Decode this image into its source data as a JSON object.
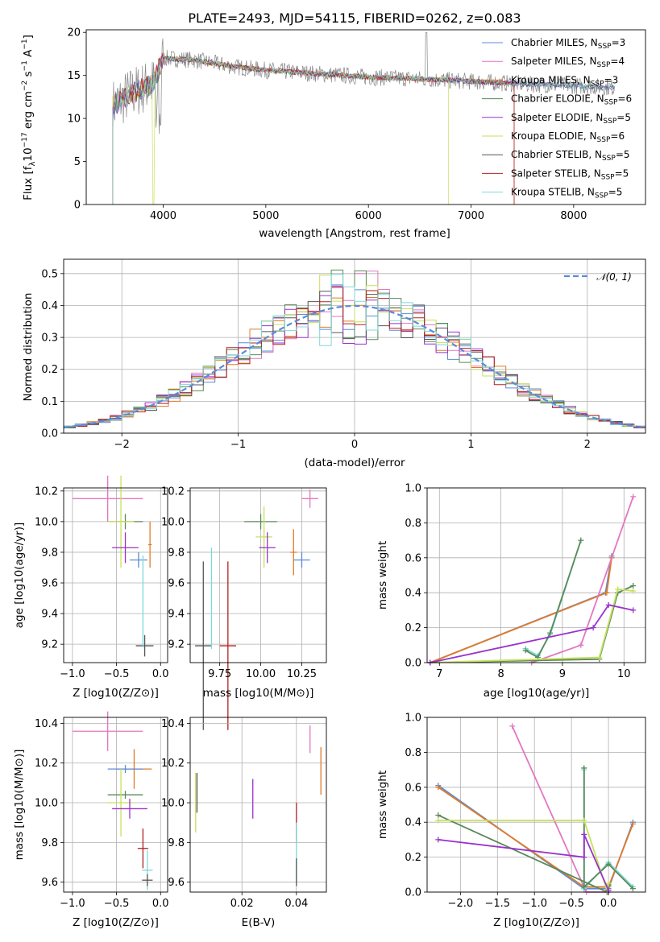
{
  "chart_data": [
    {
      "type": "line",
      "title": "PLATE=2493, MJD=54115, FIBERID=0262, z=0.083",
      "xlabel": "wavelength [Angstrom, rest frame]",
      "ylabel": "Flux [f_λ 10^-17 erg cm^-2 s^-1 A^-1]",
      "xlim": [
        3250,
        8700
      ],
      "ylim": [
        0,
        20.3
      ],
      "xticks": [
        4000,
        5000,
        6000,
        7000,
        8000
      ],
      "yticks": [
        0,
        5,
        10,
        15,
        20
      ],
      "xtick_labels": [
        "4000",
        "5000",
        "6000",
        "7000",
        "8000"
      ],
      "ytick_labels": [
        "0",
        "5",
        "10",
        "15",
        "20"
      ],
      "legend": [
        "Chabrier MILES, N_SSP=3",
        "Salpeter MILES, N_SSP=4",
        "Kroupa MILES, N_SSP=3",
        "Chabrier ELODIE, N_SSP=6",
        "Salpeter ELODIE, N_SSP=5",
        "Kroupa ELODIE, N_SSP=6",
        "Chabrier STELIB, N_SSP=5",
        "Salpeter STELIB, N_SSP=5",
        "Kroupa STELIB, N_SSP=5"
      ],
      "legend_placement": "upper right",
      "continuum_x": [
        3510,
        3700,
        3900,
        4000,
        4300,
        4700,
        5000,
        5500,
        6000,
        6500,
        7000,
        7500,
        8000,
        8400
      ],
      "continuum_y": [
        11.5,
        13.0,
        14.0,
        17.0,
        16.8,
        16.0,
        15.6,
        15.2,
        14.8,
        14.6,
        14.3,
        14.0,
        13.8,
        13.6
      ]
    },
    {
      "type": "step",
      "xlabel": "(data-model)/error",
      "ylabel": "Normed distribution",
      "xlim": [
        -2.5,
        2.5
      ],
      "ylim": [
        0,
        0.545
      ],
      "xticks": [
        -2,
        -1,
        0,
        1,
        2
      ],
      "yticks": [
        0.0,
        0.1,
        0.2,
        0.3,
        0.4,
        0.5
      ],
      "xtick_labels": [
        "−2",
        "−1",
        "0",
        "1",
        "2"
      ],
      "ytick_labels": [
        "0.0",
        "0.1",
        "0.2",
        "0.3",
        "0.4",
        "0.5"
      ],
      "bin_width": 0.1,
      "reference": {
        "name": "N(0,1)",
        "type": "gaussian",
        "color": "#5b8bd8"
      },
      "peak_bins": [
        0.52,
        0.5,
        0.41,
        0.28,
        0.28
      ]
    },
    {
      "type": "errorbar",
      "xlabel": "Z [log10(Z/Z⊙)]",
      "ylabel": "age  [log10(age/yr)]",
      "xlim": [
        -1.1,
        0.08
      ],
      "ylim": [
        9.08,
        10.22
      ],
      "xticks": [
        -1.0,
        -0.5,
        0.0
      ],
      "yticks": [
        9.2,
        9.4,
        9.6,
        9.8,
        10.0,
        10.2
      ],
      "xtick_labels": [
        "−1.0",
        "−0.5",
        "0.0"
      ],
      "ytick_labels": [
        "9.2",
        "9.4",
        "9.6",
        "9.8",
        "10.0",
        "10.2"
      ],
      "points": [
        {
          "x": -0.6,
          "y": 10.15,
          "xerr": 0.4,
          "yerr": 0.15,
          "color": "#e377c2"
        },
        {
          "x": -0.4,
          "y": 10.0,
          "xerr": 0.2,
          "yerr": 0.05,
          "color": "#5a8a5a"
        },
        {
          "x": -0.45,
          "y": 10.0,
          "xerr": 0.15,
          "yerr": 0.3,
          "color": "#c5e05a"
        },
        {
          "x": -0.4,
          "y": 9.83,
          "xerr": 0.15,
          "yerr": 0.1,
          "color": "#9932cc"
        },
        {
          "x": -0.12,
          "y": 9.85,
          "xerr": 0.02,
          "yerr": 0.15,
          "color": "#e07b28"
        },
        {
          "x": -0.25,
          "y": 9.75,
          "xerr": 0.1,
          "yerr": 0.05,
          "color": "#5b8bd8"
        },
        {
          "x": -0.18,
          "y": 9.19,
          "xerr": 0.1,
          "yerr": 0.07,
          "color": "#555555"
        },
        {
          "x": -0.2,
          "y": 9.48,
          "xerr": 0.0,
          "yerr": 0.3,
          "color": "#7fd8d8"
        }
      ]
    },
    {
      "type": "errorbar",
      "xlabel": "mass [log10(M/M⊙)]",
      "ylabel": "",
      "xlim": [
        9.57,
        10.4
      ],
      "ylim": [
        9.08,
        10.22
      ],
      "xticks": [
        9.75,
        10.0,
        10.25
      ],
      "yticks": [
        9.2,
        9.4,
        9.6,
        9.8,
        10.0,
        10.2
      ],
      "xtick_labels": [
        "9.75",
        "10.00",
        "10.25"
      ],
      "ytick_labels": [
        "9.2",
        "9.4",
        "9.6",
        "9.8",
        "10.0",
        "10.2"
      ],
      "points": [
        {
          "x": 10.3,
          "y": 10.15,
          "xerr": 0.05,
          "yerr": 0.06,
          "color": "#e377c2"
        },
        {
          "x": 10.0,
          "y": 10.0,
          "xerr": 0.1,
          "yerr": 0.05,
          "color": "#5a8a5a"
        },
        {
          "x": 10.02,
          "y": 9.9,
          "xerr": 0.05,
          "yerr": 0.2,
          "color": "#c5e05a"
        },
        {
          "x": 10.04,
          "y": 9.83,
          "xerr": 0.05,
          "yerr": 0.1,
          "color": "#9932cc"
        },
        {
          "x": 10.2,
          "y": 9.8,
          "xerr": 0.02,
          "yerr": 0.15,
          "color": "#e07b28"
        },
        {
          "x": 10.25,
          "y": 9.75,
          "xerr": 0.05,
          "yerr": 0.05,
          "color": "#5b8bd8"
        },
        {
          "x": 9.65,
          "y": 9.19,
          "xerr": 0.05,
          "yerr": 0.55,
          "color": "#555555"
        },
        {
          "x": 9.7,
          "y": 9.5,
          "xerr": 0.0,
          "yerr": 0.33,
          "color": "#7fd8d8"
        },
        {
          "x": 9.8,
          "y": 9.19,
          "xerr": 0.05,
          "yerr": 0.55,
          "color": "#b22222"
        }
      ]
    },
    {
      "type": "line",
      "xlabel": "age  [log10(age/yr)]",
      "ylabel": "mass weight",
      "xlim": [
        6.8,
        10.35
      ],
      "ylim": [
        0,
        1.0
      ],
      "xticks": [
        7,
        8,
        9,
        10
      ],
      "yticks": [
        0.0,
        0.2,
        0.4,
        0.6,
        0.8,
        1.0
      ],
      "xtick_labels": [
        "7",
        "8",
        "9",
        "10"
      ],
      "ytick_labels": [
        "0.0",
        "0.2",
        "0.4",
        "0.6",
        "0.8",
        "1.0"
      ],
      "series": [
        {
          "x": [
            6.85,
            9.7,
            9.8
          ],
          "y": [
            0.0,
            0.4,
            0.61
          ],
          "color": "#5b8bd8"
        },
        {
          "x": [
            6.85,
            9.72,
            9.8
          ],
          "y": [
            0.0,
            0.4,
            0.6
          ],
          "color": "#e07b28"
        },
        {
          "x": [
            8.5,
            9.3,
            10.15
          ],
          "y": [
            0.0,
            0.1,
            0.95
          ],
          "color": "#e377c2"
        },
        {
          "x": [
            8.4,
            8.6,
            8.8,
            9.3
          ],
          "y": [
            0.08,
            0.04,
            0.16,
            0.7
          ],
          "color": "#7fd8d8"
        },
        {
          "x": [
            8.4,
            8.6,
            8.8,
            9.3
          ],
          "y": [
            0.07,
            0.03,
            0.17,
            0.7
          ],
          "color": "#5a8a5a"
        },
        {
          "x": [
            6.85,
            9.6,
            9.9,
            10.15
          ],
          "y": [
            0.0,
            0.02,
            0.4,
            0.44
          ],
          "color": "#5a8a5a"
        },
        {
          "x": [
            6.85,
            9.6,
            9.9,
            10.15
          ],
          "y": [
            0.0,
            0.03,
            0.42,
            0.41
          ],
          "color": "#c5e05a"
        },
        {
          "x": [
            6.85,
            9.5,
            9.75,
            10.15
          ],
          "y": [
            0.0,
            0.2,
            0.33,
            0.3
          ],
          "color": "#9932cc"
        }
      ]
    },
    {
      "type": "errorbar",
      "xlabel": "Z [log10(Z/Z⊙)]",
      "ylabel": "mass [log10(M/M⊙)]",
      "xlim": [
        -1.1,
        0.08
      ],
      "ylim": [
        9.55,
        10.43
      ],
      "xticks": [
        -1.0,
        -0.5,
        0.0
      ],
      "yticks": [
        9.6,
        9.8,
        10.0,
        10.2,
        10.4
      ],
      "xtick_labels": [
        "−1.0",
        "−0.5",
        "0.0"
      ],
      "ytick_labels": [
        "9.6",
        "9.8",
        "10.0",
        "10.2",
        "10.4"
      ],
      "points": [
        {
          "x": -0.6,
          "y": 10.36,
          "xerr": 0.4,
          "yerr": 0.1,
          "color": "#e377c2"
        },
        {
          "x": -0.3,
          "y": 10.17,
          "xerr": 0.2,
          "yerr": 0.1,
          "color": "#e07b28"
        },
        {
          "x": -0.4,
          "y": 10.17,
          "xerr": 0.2,
          "yerr": 0.02,
          "color": "#5b8bd8"
        },
        {
          "x": -0.4,
          "y": 10.04,
          "xerr": 0.2,
          "yerr": 0.02,
          "color": "#5a8a5a"
        },
        {
          "x": -0.45,
          "y": 10.0,
          "xerr": 0.15,
          "yerr": 0.17,
          "color": "#c5e05a"
        },
        {
          "x": -0.35,
          "y": 9.97,
          "xerr": 0.2,
          "yerr": 0.05,
          "color": "#9932cc"
        },
        {
          "x": -0.2,
          "y": 9.77,
          "xerr": 0.06,
          "yerr": 0.1,
          "color": "#b22222"
        },
        {
          "x": -0.15,
          "y": 9.66,
          "xerr": 0.06,
          "yerr": 0.1,
          "color": "#7fd8d8"
        },
        {
          "x": -0.15,
          "y": 9.61,
          "xerr": 0.06,
          "yerr": 0.03,
          "color": "#555555"
        }
      ]
    },
    {
      "type": "errorbar",
      "xlabel": "E(B-V)",
      "ylabel": "",
      "xlim": [
        0.001,
        0.051
      ],
      "ylim": [
        9.55,
        10.43
      ],
      "xticks": [
        0.02,
        0.04
      ],
      "yticks": [
        9.6,
        9.8,
        10.0,
        10.2,
        10.4
      ],
      "xtick_labels": [
        "0.02",
        "0.04"
      ],
      "ytick_labels": [
        "9.6",
        "9.8",
        "10.0",
        "10.2",
        "10.4"
      ],
      "points": [
        {
          "x": 0.003,
          "y": 10.0,
          "xerr": 0,
          "yerr": 0.15,
          "color": "#c5e05a"
        },
        {
          "x": 0.0035,
          "y": 10.05,
          "xerr": 0,
          "yerr": 0.1,
          "color": "#555555"
        },
        {
          "x": 0.024,
          "y": 10.02,
          "xerr": 0,
          "yerr": 0.1,
          "color": "#9932cc"
        },
        {
          "x": 0.04,
          "y": 9.9,
          "xerr": 0,
          "yerr": 0.1,
          "color": "#b22222"
        },
        {
          "x": 0.04,
          "y": 9.75,
          "xerr": 0,
          "yerr": 0.15,
          "color": "#7fd8d8"
        },
        {
          "x": 0.04,
          "y": 9.65,
          "xerr": 0,
          "yerr": 0.07,
          "color": "#555555"
        },
        {
          "x": 0.045,
          "y": 10.32,
          "xerr": 0,
          "yerr": 0.07,
          "color": "#e377c2"
        },
        {
          "x": 0.049,
          "y": 10.16,
          "xerr": 0,
          "yerr": 0.12,
          "color": "#e07b28"
        }
      ]
    },
    {
      "type": "line",
      "xlabel": "Z [log10(Z/Z⊙)]",
      "ylabel": "mass weight",
      "xlim": [
        -2.45,
        0.5
      ],
      "ylim": [
        0,
        1.0
      ],
      "xticks": [
        -2.0,
        -1.5,
        -1.0,
        -0.5,
        0.0
      ],
      "yticks": [
        0.0,
        0.2,
        0.4,
        0.6,
        0.8,
        1.0
      ],
      "xtick_labels": [
        "−2.0",
        "−1.5",
        "−1.0",
        "−0.5",
        "0.0"
      ],
      "ytick_labels": [
        "0.0",
        "0.2",
        "0.4",
        "0.6",
        "0.8",
        "1.0"
      ],
      "series": [
        {
          "x": [
            -1.3,
            -0.3,
            0.0
          ],
          "y": [
            0.95,
            0.0,
            0.0
          ],
          "color": "#e377c2"
        },
        {
          "x": [
            -2.3,
            -0.33,
            0.0,
            0.33
          ],
          "y": [
            0.61,
            0.02,
            0.02,
            0.4
          ],
          "color": "#5b8bd8"
        },
        {
          "x": [
            -2.3,
            -0.33,
            0.0,
            0.33
          ],
          "y": [
            0.6,
            0.03,
            0.03,
            0.39
          ],
          "color": "#e07b28"
        },
        {
          "x": [
            -0.33,
            -0.33,
            0.0,
            0.33
          ],
          "y": [
            0.7,
            0.02,
            0.17,
            0.03
          ],
          "color": "#7fd8d8"
        },
        {
          "x": [
            -0.33,
            -0.33,
            0.0,
            0.33
          ],
          "y": [
            0.71,
            0.03,
            0.16,
            0.02
          ],
          "color": "#5a8a5a"
        },
        {
          "x": [
            -2.3,
            -0.02,
            0.0
          ],
          "y": [
            0.44,
            0.0,
            0.04
          ],
          "color": "#5a8a5a"
        },
        {
          "x": [
            -2.3,
            -0.33,
            -0.02,
            0.0
          ],
          "y": [
            0.41,
            0.41,
            0.01,
            0.05
          ],
          "color": "#c5e05a"
        },
        {
          "x": [
            -2.3,
            -0.33,
            -0.33,
            0.0
          ],
          "y": [
            0.3,
            0.2,
            0.33,
            0.01
          ],
          "color": "#9932cc"
        }
      ]
    }
  ]
}
